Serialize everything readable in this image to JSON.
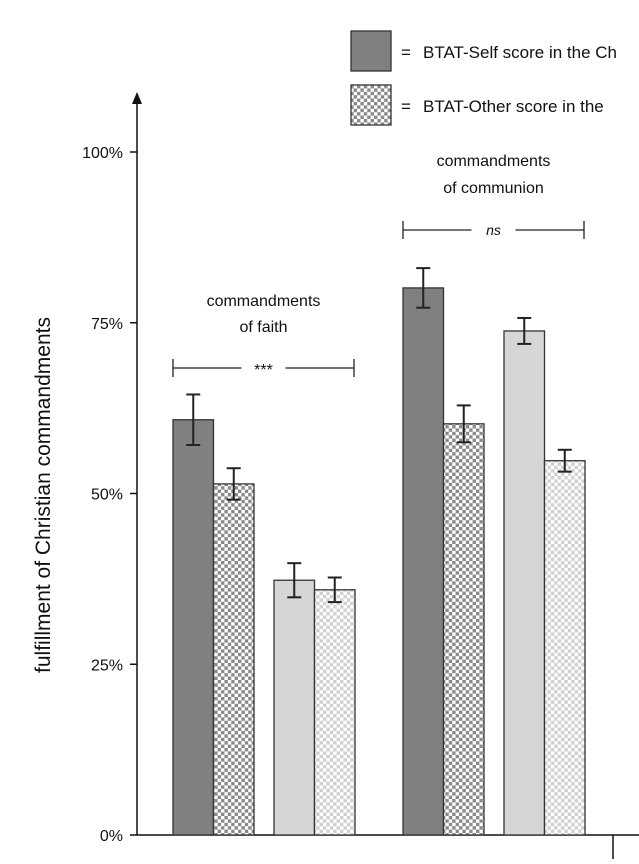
{
  "chart_data": {
    "type": "bar",
    "title": "",
    "xlabel": "",
    "ylabel": "fulfillment of Christian commandments",
    "ylim": [
      0,
      100
    ],
    "yticks": [
      "0%",
      "25%",
      "50%",
      "75%",
      "100%"
    ],
    "ytick_values": [
      0,
      25,
      50,
      75,
      100
    ],
    "grid": false,
    "legend_placement": "top-right",
    "legend": [
      {
        "symbol": "=",
        "label": "BTAT-Self score in the Ch",
        "fill": "solid-dark"
      },
      {
        "symbol": "=",
        "label": "BTAT-Other score in the",
        "fill": "checker-dark"
      }
    ],
    "groups": [
      {
        "label_line1": "commandments",
        "label_line2": "of faith",
        "significance": "***"
      },
      {
        "label_line1": "commandments",
        "label_line2": "of communion",
        "significance": "ns"
      }
    ],
    "series": [
      {
        "name": "BTAT-Self score in the Ch",
        "fill": "solid",
        "color": "#808080",
        "values": [
          60.8,
          80.1
        ],
        "errors": [
          3.7,
          2.9
        ]
      },
      {
        "name": "BTAT-Other score in the",
        "fill": "checker",
        "color": "#8a8a8a",
        "values": [
          51.4,
          60.2
        ],
        "errors": [
          2.3,
          2.7
        ]
      },
      {
        "fill": "solid",
        "color": "#d6d6d6",
        "values": [
          37.3,
          73.8
        ],
        "errors": [
          2.5,
          1.9
        ]
      },
      {
        "fill": "checker",
        "color": "#d0d0d0",
        "values": [
          35.9,
          54.8
        ],
        "errors": [
          1.8,
          1.6
        ]
      }
    ]
  }
}
